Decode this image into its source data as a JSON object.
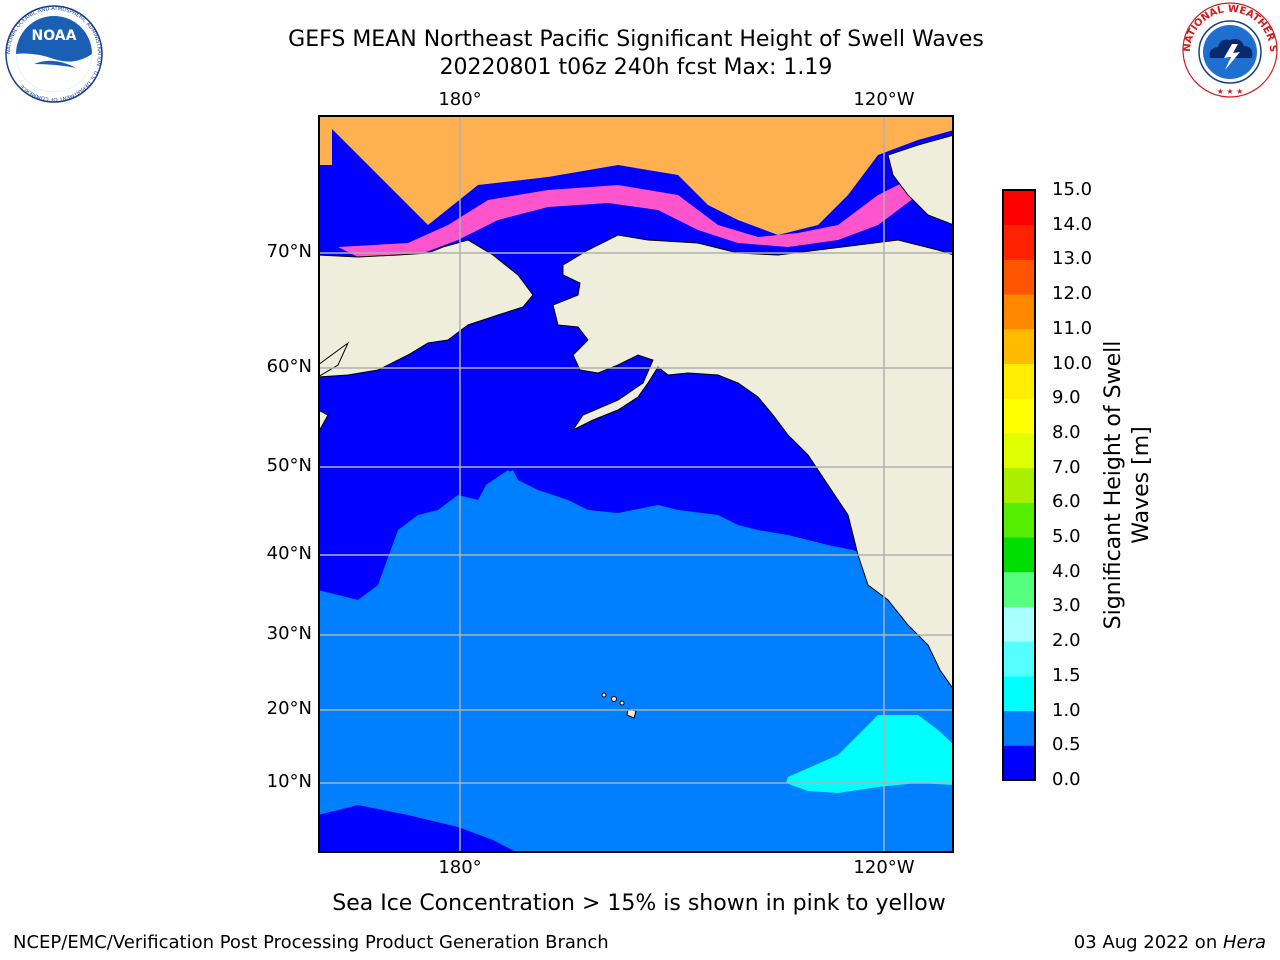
{
  "title": {
    "line1": "GEFS MEAN Northeast Pacific Significant Height of Swell Waves",
    "line2": "20220801 t06z 240h fcst   Max: 1.19"
  },
  "caption": "Sea Ice Concentration > 15% is shown in pink to yellow",
  "footer": {
    "credit": "NCEP/EMC/Verification Post Processing Product Generation Branch",
    "date_prefix": "03 Aug 2022 on ",
    "machine": "Hera"
  },
  "logos": {
    "noaa": {
      "text": "NOAA",
      "ring_text": "NATIONAL OCEANIC AND ATMOSPHERIC ADMINISTRATION · U.S. DEPARTMENT OF COMMERCE"
    },
    "nws": {
      "ring_text": "NATIONAL WEATHER SERVICE"
    }
  },
  "map": {
    "lat_labels": [
      "70°N",
      "60°N",
      "50°N",
      "40°N",
      "30°N",
      "20°N",
      "10°N"
    ],
    "lon_labels_top": [
      "180°",
      "120°W"
    ],
    "lon_labels_bottom": [
      "180°",
      "120°W"
    ],
    "colors": {
      "land": "#efeedd",
      "ocean_low": "#0000ff",
      "ocean_mid": "#0080ff",
      "swell_high": "#00ffff",
      "ice_pink": "#ff55cc",
      "ice_orange": "#ffb050",
      "grid": "#b0b0b0"
    }
  },
  "colorbar": {
    "label_line1": "Significant Height of Swell",
    "label_line2": "Waves [m]",
    "ticks": [
      "15.0",
      "14.0",
      "13.0",
      "12.0",
      "11.0",
      "10.0",
      "9.0",
      "8.0",
      "7.0",
      "6.0",
      "5.0",
      "4.0",
      "3.0",
      "2.0",
      "1.5",
      "1.0",
      "0.5",
      "0.0"
    ],
    "levels": [
      0.0,
      0.5,
      1.0,
      1.5,
      2.0,
      3.0,
      4.0,
      5.0,
      6.0,
      7.0,
      8.0,
      9.0,
      10.0,
      11.0,
      12.0,
      13.0,
      14.0,
      15.0
    ],
    "colors": [
      "#0000ff",
      "#0080ff",
      "#00ffff",
      "#55ffff",
      "#aaffff",
      "#55ff80",
      "#00dd00",
      "#55ee00",
      "#aaee00",
      "#ddff00",
      "#ffff00",
      "#ffee00",
      "#ffbb00",
      "#ff8800",
      "#ff5500",
      "#ff2200",
      "#ff0000"
    ]
  }
}
